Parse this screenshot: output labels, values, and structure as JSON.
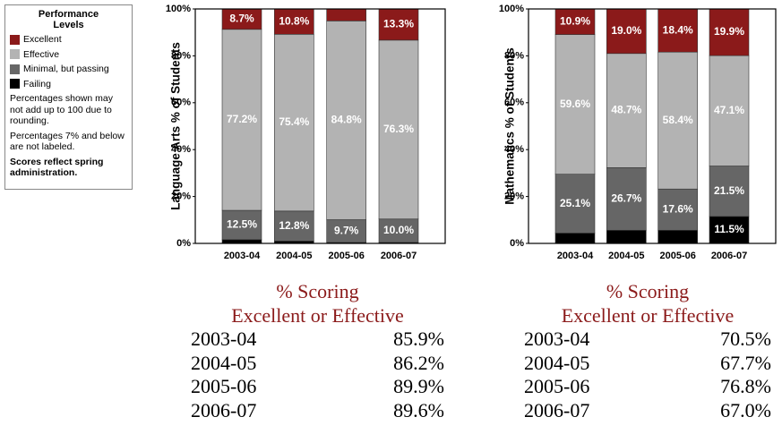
{
  "legend": {
    "title": "Performance Levels",
    "notes": [
      "Percentages shown may not add up to 100 due to rounding.",
      "Percentages 7% and below are not labeled."
    ],
    "bold_note": "Scores reflect spring administration."
  },
  "chart_data": [
    {
      "type": "stacked-bar",
      "ylabel": "Language Arts % of Students",
      "categories": [
        "2003-04",
        "2004-05",
        "2005-06",
        "2006-07"
      ],
      "ylim": [
        0,
        100
      ],
      "yticks": [
        {
          "value": 0,
          "label": "0%"
        },
        {
          "value": 20,
          "label": "20%"
        },
        {
          "value": 40,
          "label": "40%"
        },
        {
          "value": 60,
          "label": "60%"
        },
        {
          "value": 80,
          "label": "80%"
        },
        {
          "value": 100,
          "label": "100%"
        }
      ],
      "series": [
        {
          "name": "Excellent",
          "color": "#8b1a1a",
          "values": [
            8.7,
            10.8,
            5.1,
            13.3
          ],
          "value_labels": [
            "8.7%",
            "10.8%",
            null,
            "13.3%"
          ]
        },
        {
          "name": "Effective",
          "color": "#b3b3b3",
          "values": [
            77.2,
            75.4,
            84.8,
            76.3
          ],
          "value_labels": [
            "77.2%",
            "75.4%",
            "84.8%",
            "76.3%"
          ]
        },
        {
          "name": "Minimal, but passing",
          "color": "#666666",
          "values": [
            12.5,
            12.8,
            9.7,
            10.0
          ],
          "value_labels": [
            "12.5%",
            "12.8%",
            "9.7%",
            "10.0%"
          ]
        },
        {
          "name": "Failing",
          "color": "#000000",
          "values": [
            1.6,
            1.0,
            0.4,
            0.4
          ],
          "value_labels": [
            null,
            null,
            null,
            null
          ]
        }
      ]
    },
    {
      "type": "stacked-bar",
      "ylabel": "Mathematics % of Students",
      "categories": [
        "2003-04",
        "2004-05",
        "2005-06",
        "2006-07"
      ],
      "ylim": [
        0,
        100
      ],
      "yticks": [
        {
          "value": 0,
          "label": "0%"
        },
        {
          "value": 20,
          "label": "20%"
        },
        {
          "value": 40,
          "label": "40%"
        },
        {
          "value": 60,
          "label": "60%"
        },
        {
          "value": 80,
          "label": "80%"
        },
        {
          "value": 100,
          "label": "100%"
        }
      ],
      "series": [
        {
          "name": "Excellent",
          "color": "#8b1a1a",
          "values": [
            10.9,
            19.0,
            18.4,
            19.9
          ],
          "value_labels": [
            "10.9%",
            "19.0%",
            "18.4%",
            "19.9%"
          ]
        },
        {
          "name": "Effective",
          "color": "#b3b3b3",
          "values": [
            59.6,
            48.7,
            58.4,
            47.1
          ],
          "value_labels": [
            "59.6%",
            "48.7%",
            "58.4%",
            "47.1%"
          ]
        },
        {
          "name": "Minimal, but passing",
          "color": "#666666",
          "values": [
            25.1,
            26.7,
            17.6,
            21.5
          ],
          "value_labels": [
            "25.1%",
            "26.7%",
            "17.6%",
            "21.5%"
          ]
        },
        {
          "name": "Failing",
          "color": "#000000",
          "values": [
            4.4,
            5.6,
            5.6,
            11.5
          ],
          "value_labels": [
            null,
            null,
            null,
            "11.5%"
          ]
        }
      ]
    }
  ],
  "tables": [
    {
      "title_lines": [
        "% Scoring",
        "Excellent or Effective"
      ],
      "rows": [
        [
          "2003-04",
          "85.9%"
        ],
        [
          "2004-05",
          "86.2%"
        ],
        [
          "2005-06",
          "89.9%"
        ],
        [
          "2006-07",
          "89.6%"
        ]
      ]
    },
    {
      "title_lines": [
        "% Scoring",
        "Excellent or Effective"
      ],
      "rows": [
        [
          "2003-04",
          "70.5%"
        ],
        [
          "2004-05",
          "67.7%"
        ],
        [
          "2005-06",
          "76.8%"
        ],
        [
          "2006-07",
          "67.0%"
        ]
      ]
    }
  ]
}
